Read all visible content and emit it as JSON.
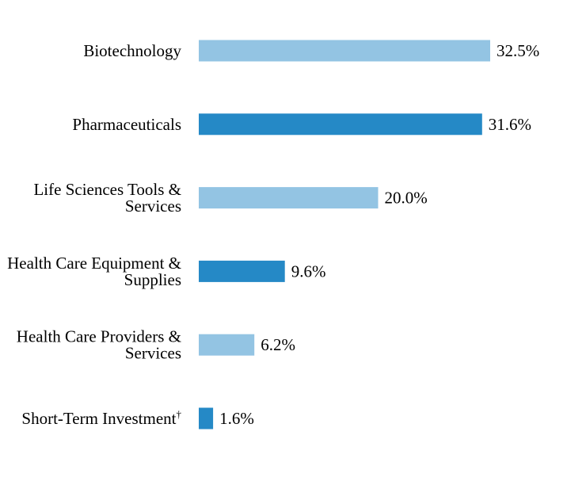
{
  "chart_data": {
    "type": "bar",
    "orientation": "horizontal",
    "categories": [
      "Biotechnology",
      "Pharmaceuticals",
      "Life Sciences Tools & Services",
      "Health Care Equipment & Supplies",
      "Health Care Providers & Services",
      "Short-Term Investment"
    ],
    "category_label_lines": [
      [
        "Biotechnology"
      ],
      [
        "Pharmaceuticals"
      ],
      [
        "Life Sciences Tools &",
        "Services"
      ],
      [
        "Health Care Equipment &",
        "Supplies"
      ],
      [
        "Health Care Providers &",
        "Services"
      ],
      [
        "Short-Term Investment"
      ]
    ],
    "category_superscripts": [
      "",
      "",
      "",
      "",
      "",
      "†"
    ],
    "values": [
      32.5,
      31.6,
      20.0,
      9.6,
      6.2,
      1.6
    ],
    "value_labels": [
      "32.5%",
      "31.6%",
      "20.0%",
      "9.6%",
      "6.2%",
      "1.6%"
    ],
    "unit": "%",
    "xlim": [
      0,
      32.5
    ],
    "grid": false,
    "axes_visible": false,
    "bar_colors": [
      "#93c4e3",
      "#2589c6",
      "#93c4e3",
      "#2589c6",
      "#93c4e3",
      "#2589c6"
    ]
  }
}
